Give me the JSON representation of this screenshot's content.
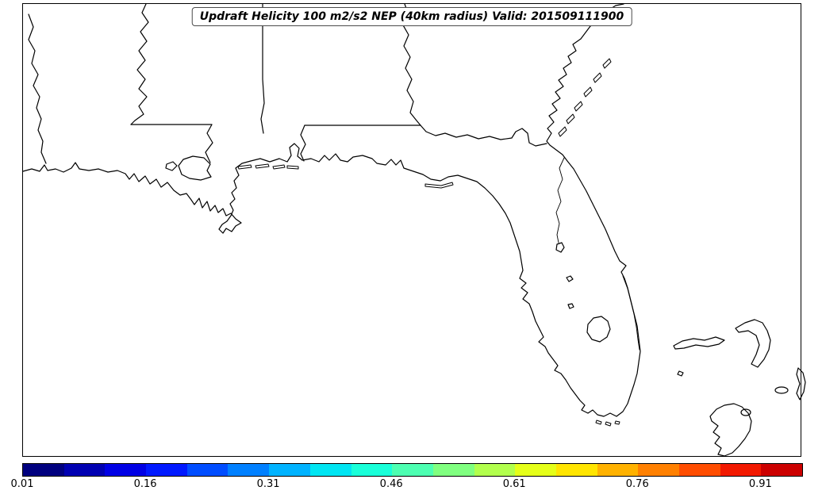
{
  "title": "Updraft Helicity 100 m2/s2 NEP (40km radius) Valid: 201509111900",
  "colorbar": {
    "tick_labels": [
      "0.01",
      "0.16",
      "0.31",
      "0.46",
      "0.61",
      "0.76",
      "0.91"
    ],
    "min_value": 0.01,
    "max_value": 0.96,
    "segment_colors": [
      "#00007f",
      "#0000b2",
      "#0000e5",
      "#0019ff",
      "#004dff",
      "#0080ff",
      "#00b3ff",
      "#00e5f2",
      "#19ffd9",
      "#4dffb2",
      "#80ff80",
      "#b2ff4d",
      "#e5ff19",
      "#ffe500",
      "#ffb200",
      "#ff8000",
      "#ff4d00",
      "#f21900",
      "#cc0000"
    ]
  },
  "colors": {
    "outline": "#000000",
    "background": "#ffffff",
    "frame": "#000000"
  }
}
